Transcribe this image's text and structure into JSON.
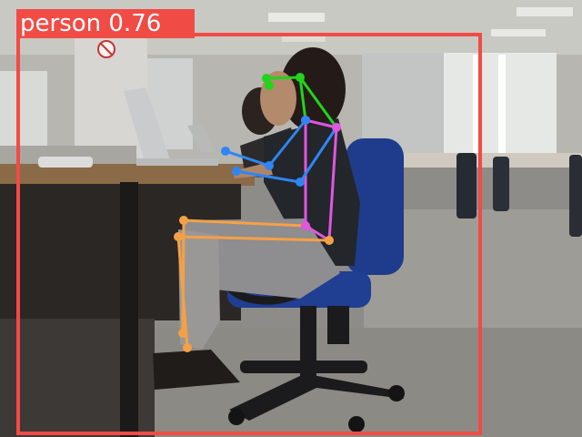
{
  "detection": {
    "class_name": "person",
    "confidence": "0.76",
    "box_color": "#f14b45"
  },
  "skeleton": {
    "colors": {
      "head": "#22d41a",
      "arms": "#2f86f2",
      "torso": "#e056e0",
      "legs": "#f6a045"
    },
    "keypoints": [
      {
        "name": "nose"
      },
      {
        "name": "left-eye"
      },
      {
        "name": "right-eye"
      },
      {
        "name": "right-ear"
      },
      {
        "name": "left-shoulder"
      },
      {
        "name": "right-shoulder"
      },
      {
        "name": "left-elbow"
      },
      {
        "name": "right-elbow"
      },
      {
        "name": "left-wrist"
      },
      {
        "name": "right-wrist"
      },
      {
        "name": "left-hip"
      },
      {
        "name": "right-hip"
      },
      {
        "name": "left-knee"
      },
      {
        "name": "right-knee"
      },
      {
        "name": "left-ankle"
      },
      {
        "name": "right-ankle"
      }
    ]
  },
  "scene": {
    "sign": "no-smoking-sign"
  }
}
